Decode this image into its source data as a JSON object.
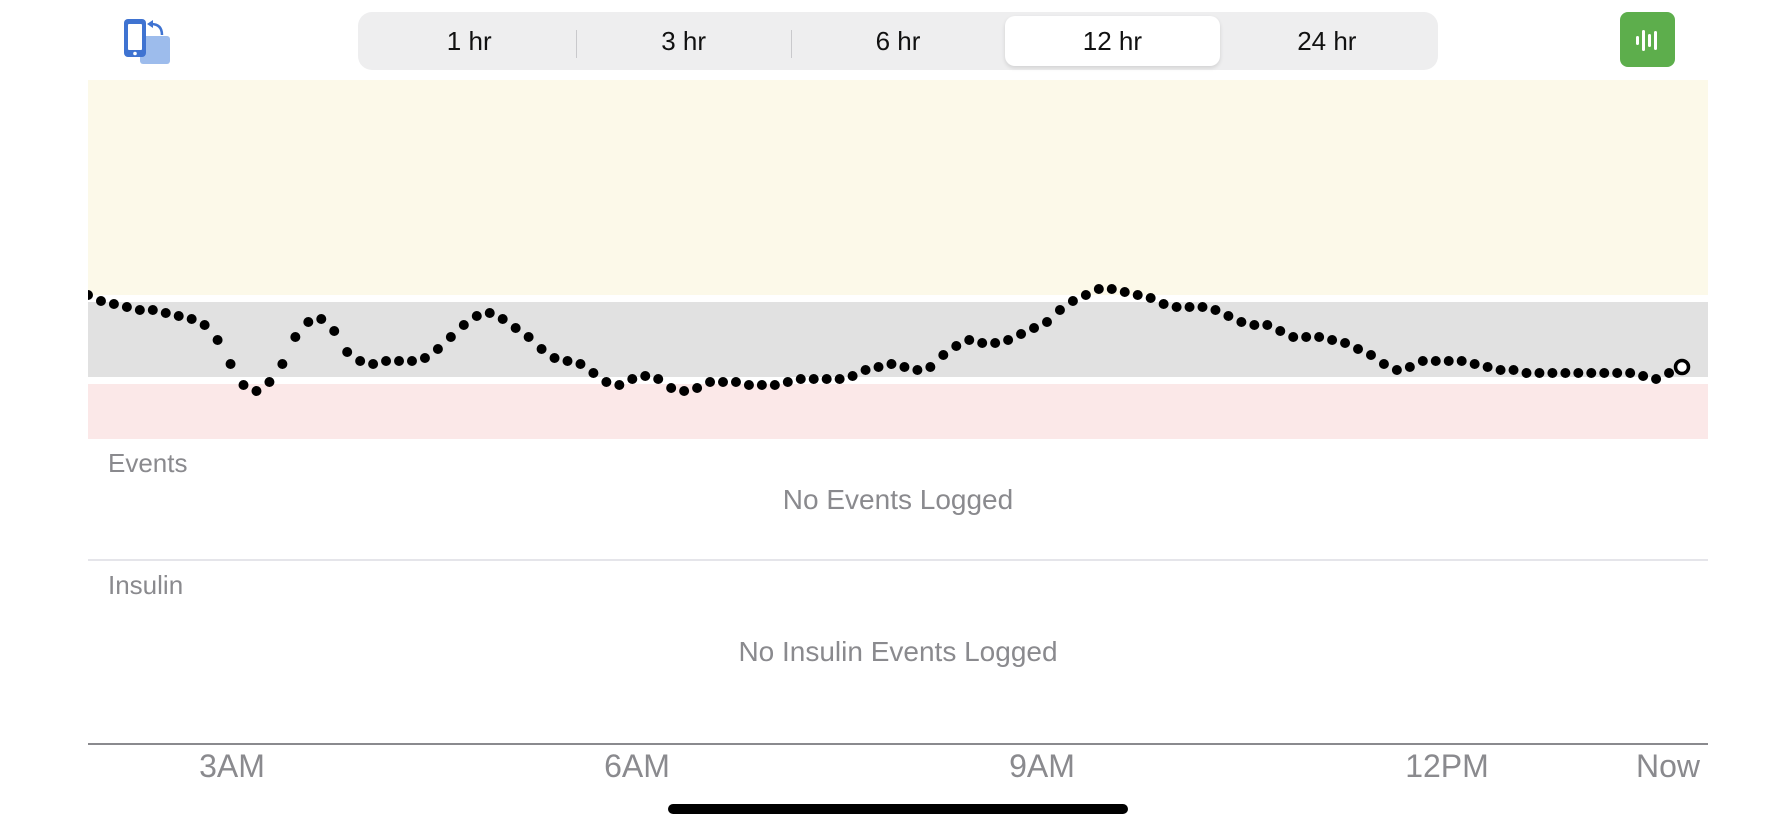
{
  "toolbar": {
    "rotate_icon": "rotate-screen-icon",
    "share_icon": "audio-waveform-icon",
    "accent_color": "#5dae4c",
    "time_range": {
      "options": [
        "1 hr",
        "3 hr",
        "6 hr",
        "12 hr",
        "24 hr"
      ],
      "selected": "12 hr"
    }
  },
  "chart_data": {
    "type": "scatter",
    "x_start": "2:00 AM",
    "x_end": "2:00 PM",
    "x_ticks": [
      "3AM",
      "6AM",
      "9AM",
      "12PM",
      "Now"
    ],
    "bands": [
      {
        "name": "high",
        "color": "#fcf9e9"
      },
      {
        "name": "in-range",
        "color": "#e1e1e1"
      },
      {
        "name": "low",
        "color": "#fbe8e8"
      }
    ],
    "marker_color": "#000000",
    "current_marker": "hollow-circle",
    "y": [
      110,
      108,
      107,
      106,
      105,
      105,
      104,
      103,
      102,
      100,
      95,
      87,
      80,
      78,
      81,
      87,
      96,
      101,
      102,
      98,
      91,
      88,
      87,
      88,
      88,
      88,
      89,
      92,
      96,
      100,
      103,
      104,
      102,
      99,
      96,
      92,
      89,
      88,
      87,
      84,
      81,
      80,
      82,
      83,
      82,
      79,
      78,
      79,
      81,
      81,
      81,
      80,
      80,
      80,
      81,
      82,
      82,
      82,
      82,
      83,
      85,
      86,
      87,
      86,
      85,
      86,
      90,
      93,
      95,
      94,
      94,
      95,
      97,
      99,
      101,
      105,
      108,
      110,
      112,
      112,
      111,
      110,
      109,
      107,
      106,
      106,
      106,
      105,
      103,
      101,
      100,
      100,
      98,
      96,
      96,
      96,
      95,
      94,
      92,
      90,
      87,
      85,
      86,
      88,
      88,
      88,
      88,
      87,
      86,
      85,
      85,
      84,
      84,
      84,
      84,
      84,
      84,
      84,
      84,
      84,
      83,
      82,
      84,
      86
    ]
  },
  "events": {
    "label": "Events",
    "empty": "No Events Logged"
  },
  "insulin": {
    "label": "Insulin",
    "empty": "No Insulin Events Logged"
  }
}
